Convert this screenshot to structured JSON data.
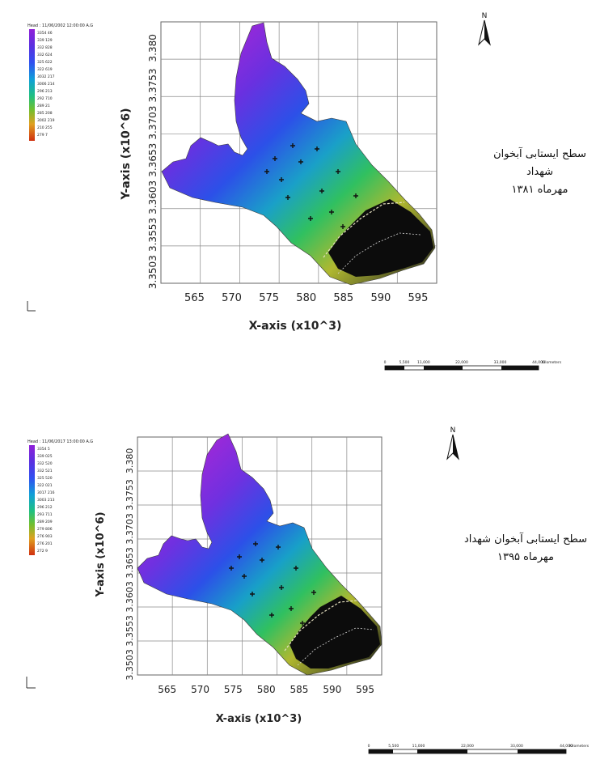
{
  "panels": [
    {
      "id": "map-1381",
      "legend_title": "Head : 11/06/2002 12:00:00 A.G",
      "legend_values": [
        "3354 46",
        "339 129",
        "332 828",
        "332 624",
        "325 622",
        "322 619",
        "3032 217",
        "3006 214",
        "296 213",
        "292 710",
        "289 21",
        "285 208",
        "3002 219",
        "210 255",
        "279 7"
      ],
      "y_axis_label": "Y-axis (x10^6)",
      "y_ticks": [
        "3.3503",
        "3.3553",
        "3.3603",
        "3.3653",
        "3.3703",
        "3.3753",
        "3.380"
      ],
      "x_axis_label": "X-axis (x10^3)",
      "x_ticks": [
        "565",
        "570",
        "575",
        "580",
        "585",
        "590",
        "595"
      ],
      "north_letter": "N",
      "caption_line1": "سطح ایستابی آبخوان شهداد",
      "caption_line2": "مهرماه ۱۳۸۱",
      "scale_labels": [
        "0",
        "5,500",
        "11,000",
        "22,000",
        "33,000",
        "44,000",
        "Kilometers"
      ]
    },
    {
      "id": "map-1395",
      "legend_title": "Head : 11/06/2017 13:00:00 A.G",
      "legend_values": [
        "3354 5",
        "339 025",
        "332 520",
        "332 521",
        "325 520",
        "322 021",
        "3017 216",
        "3003 213",
        "296 212",
        "293 711",
        "289 209",
        "279 806",
        "276 903",
        "276 201",
        "272 9"
      ],
      "y_axis_label": "Y-axis (x10^6)",
      "y_ticks": [
        "3.3503",
        "3.3553",
        "3.3603",
        "3.3653",
        "3.3703",
        "3.3753",
        "3.380"
      ],
      "x_axis_label": "X-axis (x10^3)",
      "x_ticks": [
        "565",
        "570",
        "575",
        "580",
        "585",
        "590",
        "595"
      ],
      "north_letter": "N",
      "caption_line1": "سطح ایستابی آبخوان شهداد",
      "caption_line2": "مهرماه ۱۳۹۵",
      "scale_labels": [
        "0",
        "5,500",
        "11,000",
        "22,000",
        "33,000",
        "44,000",
        "Kilometers"
      ]
    }
  ],
  "colors": {
    "ramp": [
      "#d020d0",
      "#8030e0",
      "#4030e0",
      "#2050f0",
      "#1890e0",
      "#10b0c0",
      "#20c090",
      "#40c040",
      "#80c030",
      "#c0c020",
      "#e0a020",
      "#e06020",
      "#d03010"
    ],
    "black_region": "#0a0a0a",
    "grid": "#8a8a8a"
  }
}
